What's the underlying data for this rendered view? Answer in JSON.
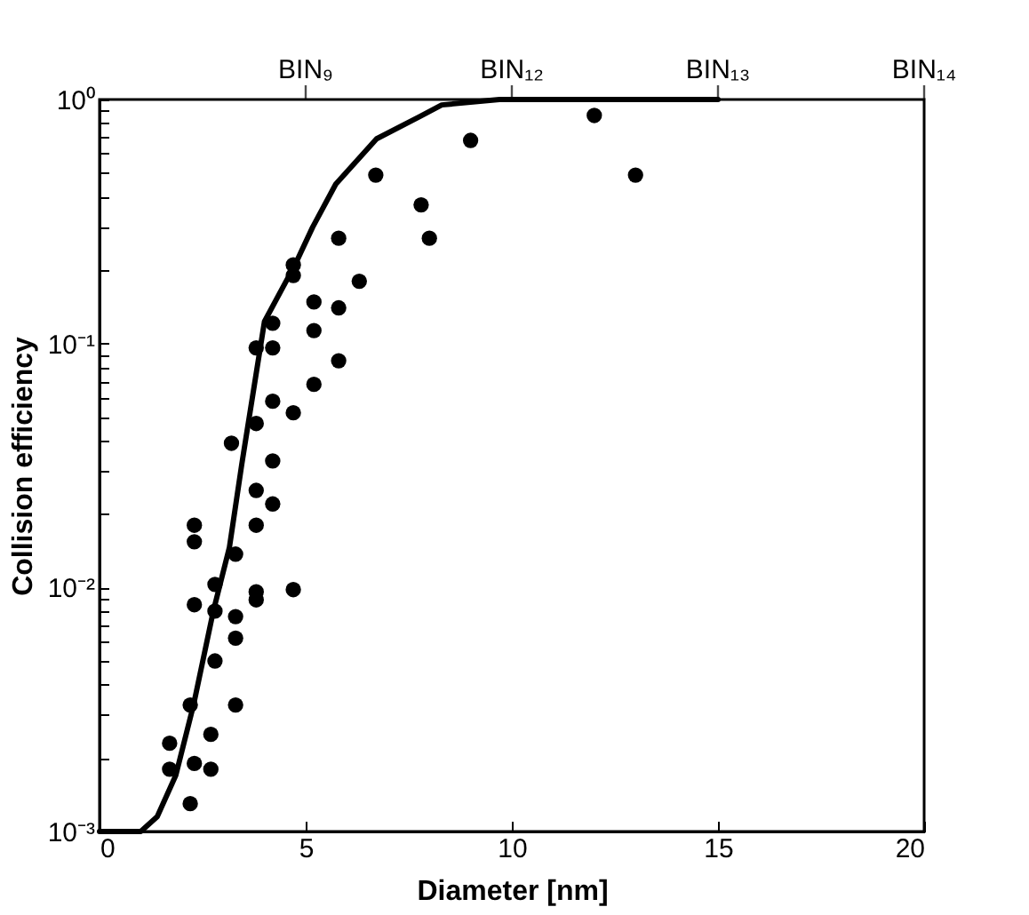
{
  "chart_data": {
    "type": "scatter",
    "xlabel": "Diameter [nm]",
    "ylabel": "Collision efficiency",
    "xlim": [
      0,
      20
    ],
    "xticks": [
      0,
      5,
      10,
      15,
      20
    ],
    "annotations": [
      "BIN₉",
      "BIN₁₂",
      "BIN₁₃",
      "BIN₁₄"
    ],
    "ylim": [
      0.001,
      1
    ],
    "log": "y",
    "yticks": [
      {
        "value": 0.001,
        "label": "10⁻³"
      },
      {
        "value": 0.002,
        "label": null
      },
      {
        "value": 0.003,
        "label": null
      },
      {
        "value": 0.004,
        "label": null
      },
      {
        "value": 0.005,
        "label": null
      },
      {
        "value": 0.006,
        "label": null
      },
      {
        "value": 0.007,
        "label": null
      },
      {
        "value": 0.008,
        "label": null
      },
      {
        "value": 0.009,
        "label": null
      },
      {
        "value": 0.01,
        "label": "10⁻²"
      },
      {
        "value": 0.02,
        "label": null
      },
      {
        "value": 0.03,
        "label": null
      },
      {
        "value": 0.04,
        "label": null
      },
      {
        "value": 0.05,
        "label": null
      },
      {
        "value": 0.06,
        "label": null
      },
      {
        "value": 0.07,
        "label": null
      },
      {
        "value": 0.08,
        "label": null
      },
      {
        "value": 0.09,
        "label": null
      },
      {
        "value": 0.1,
        "label": "10⁻¹"
      },
      {
        "value": 0.2,
        "label": null
      },
      {
        "value": 0.3,
        "label": null
      },
      {
        "value": 0.4,
        "label": null
      },
      {
        "value": 0.5,
        "label": null
      },
      {
        "value": 0.6,
        "label": null
      },
      {
        "value": 0.7,
        "label": null
      },
      {
        "value": 0.8,
        "label": null
      },
      {
        "value": 0.9,
        "label": null
      },
      {
        "value": 1,
        "label": "10⁰"
      }
    ],
    "grid": false,
    "marker": "circle",
    "series": [
      {
        "color": "#000000",
        "x": [
          12,
          13,
          9,
          6.7,
          7.8,
          8,
          5.8,
          4.7,
          4.7,
          6.3,
          5.2,
          5.8,
          5.2,
          4.2,
          3.8,
          4.2,
          5.8,
          5.2,
          4.2,
          4.7,
          3.8,
          3.2,
          4.2,
          3.8,
          4.2,
          2.3,
          2.3,
          3.8,
          3.3,
          2.8,
          2.3,
          2.8,
          3.8,
          3.8,
          4.7,
          3.3,
          3.3,
          2.8,
          2.2,
          3.3,
          2.7,
          1.7,
          1.7,
          2.3,
          2.7,
          2.2
        ],
        "values": [
          0.86,
          0.49,
          0.68,
          0.49,
          0.37,
          0.27,
          0.27,
          0.21,
          0.19,
          0.18,
          0.148,
          0.14,
          0.113,
          0.121,
          0.096,
          0.096,
          0.085,
          0.068,
          0.058,
          0.052,
          0.047,
          0.039,
          0.033,
          0.025,
          0.022,
          0.018,
          0.0154,
          0.018,
          0.0137,
          0.0103,
          0.0085,
          0.008,
          0.0096,
          0.0089,
          0.0098,
          0.0076,
          0.0062,
          0.005,
          0.0033,
          0.0033,
          0.0025,
          0.0023,
          0.0018,
          0.0019,
          0.0018,
          0.0013
        ]
      },
      {
        "type": "line",
        "color": "#000000",
        "marker": "none",
        "line_style": "solid",
        "x": [
          0,
          1,
          1.4,
          1.85,
          2.28,
          2.76,
          3.15,
          3.45,
          4,
          4.74,
          5.17,
          5.73,
          6.72,
          7.76,
          8.3,
          9.7,
          15
        ],
        "values": [
          0.001,
          0.001,
          0.00115,
          0.0017,
          0.0033,
          0.008,
          0.0146,
          0.032,
          0.123,
          0.21,
          0.3,
          0.45,
          0.69,
          0.85,
          0.95,
          1,
          1
        ]
      }
    ]
  }
}
